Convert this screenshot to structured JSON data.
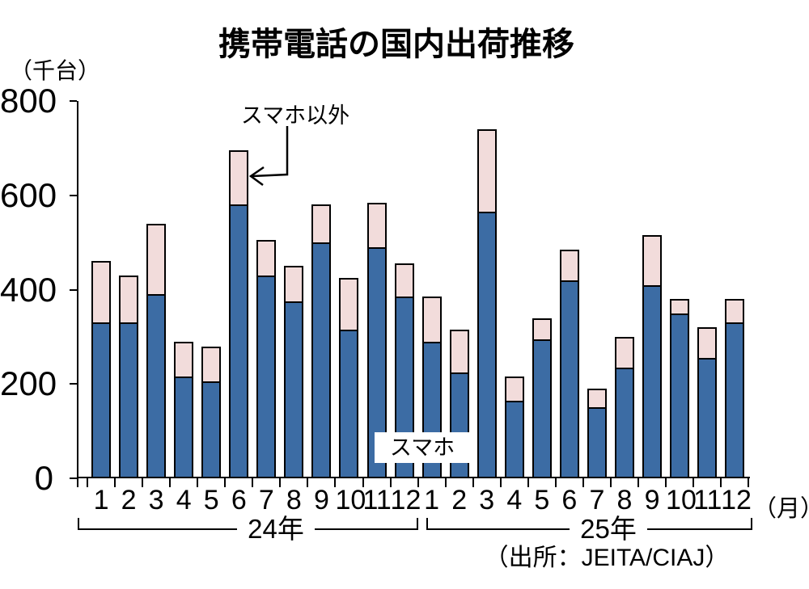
{
  "title": "携帯電話の国内出荷推移",
  "y_axis": {
    "unit_label": "（千台）",
    "ticks": [
      0,
      200,
      400,
      600,
      800
    ],
    "max": 800
  },
  "x_axis": {
    "unit_label": "（月）"
  },
  "annotations": {
    "non_smartphone_callout": "スマホ以外",
    "smartphone_label": "スマホ"
  },
  "source": "（出所：JEITA/CIAJ）",
  "year_groups": [
    {
      "label": "24年"
    },
    {
      "label": "25年"
    }
  ],
  "colors": {
    "smartphone_bar": "#3c6ca4",
    "non_smartphone_bar": "#f2dcdb",
    "bar_border": "#000000",
    "axis": "#000000"
  },
  "chart_data": {
    "type": "bar",
    "stacked": true,
    "title": "携帯電話の国内出荷推移",
    "ylabel": "（千台）",
    "xlabel": "（月）",
    "ylim": [
      0,
      800
    ],
    "yticks": [
      0,
      200,
      400,
      600,
      800
    ],
    "grid": false,
    "legend_position": "inline-annotations",
    "categories": [
      "1",
      "2",
      "3",
      "4",
      "5",
      "6",
      "7",
      "8",
      "9",
      "10",
      "11",
      "12",
      "1",
      "2",
      "3",
      "4",
      "5",
      "6",
      "7",
      "8",
      "9",
      "10",
      "11",
      "12"
    ],
    "category_groups": [
      {
        "label": "24年",
        "from_index": 0,
        "to_index": 11
      },
      {
        "label": "25年",
        "from_index": 12,
        "to_index": 23
      }
    ],
    "series": [
      {
        "name": "スマホ",
        "color": "#3c6ca4",
        "values": [
          330,
          330,
          390,
          215,
          205,
          580,
          430,
          375,
          500,
          315,
          490,
          385,
          290,
          225,
          565,
          165,
          295,
          420,
          150,
          235,
          410,
          350,
          255,
          330
        ]
      },
      {
        "name": "スマホ以外",
        "color": "#f2dcdb",
        "values": [
          130,
          100,
          150,
          75,
          75,
          115,
          75,
          75,
          80,
          110,
          95,
          70,
          95,
          90,
          175,
          50,
          45,
          65,
          40,
          65,
          105,
          30,
          65,
          50
        ]
      }
    ],
    "totals": [
      460,
      430,
      540,
      290,
      280,
      695,
      505,
      450,
      580,
      425,
      585,
      455,
      385,
      315,
      740,
      215,
      340,
      485,
      190,
      300,
      515,
      380,
      320,
      380
    ],
    "source": "（出所：JEITA/CIAJ）"
  }
}
